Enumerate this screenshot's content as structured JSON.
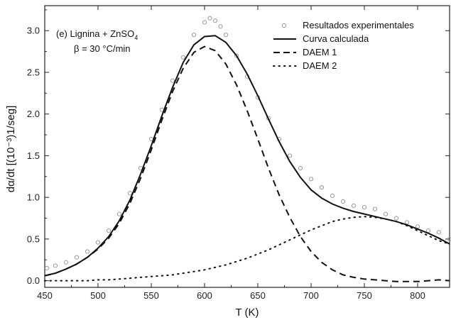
{
  "chart_data": {
    "type": "line",
    "xlabel": "T (K)",
    "ylabel": "dα/dt [(10⁻³)1/seg]",
    "xlim": [
      450,
      830
    ],
    "ylim": [
      -0.08,
      3.3
    ],
    "xticks": [
      450,
      500,
      550,
      600,
      650,
      700,
      750,
      800
    ],
    "yticks": [
      0.0,
      0.5,
      1.0,
      1.5,
      2.0,
      2.5,
      3.0
    ],
    "annotation": {
      "line1_prefix": "(e) Lignina + ZnSO",
      "line1_subscript": "4",
      "line2": "β = 30 °C/min"
    },
    "legend": {
      "placement": "top-right",
      "entries": [
        "Resultados experimentales",
        "Curva calculada",
        "DAEM 1",
        "DAEM 2"
      ]
    },
    "series": [
      {
        "name": "Resultados experimentales",
        "style": "open-circles",
        "color": "#9a9a9a",
        "x": [
          452,
          460,
          470,
          480,
          490,
          500,
          510,
          520,
          530,
          540,
          550,
          560,
          570,
          580,
          590,
          600,
          605,
          610,
          615,
          620,
          630,
          640,
          650,
          660,
          670,
          680,
          690,
          700,
          710,
          720,
          730,
          740,
          750,
          760,
          770,
          780,
          790,
          800,
          810,
          820,
          830
        ],
        "y": [
          0.15,
          0.18,
          0.22,
          0.28,
          0.35,
          0.46,
          0.6,
          0.8,
          1.05,
          1.35,
          1.7,
          2.05,
          2.4,
          2.68,
          2.95,
          3.1,
          3.15,
          3.12,
          3.05,
          2.95,
          2.7,
          2.45,
          2.2,
          1.95,
          1.7,
          1.5,
          1.35,
          1.22,
          1.12,
          1.02,
          0.95,
          0.9,
          0.88,
          0.86,
          0.8,
          0.75,
          0.7,
          0.65,
          0.6,
          0.58,
          0.5
        ]
      },
      {
        "name": "Curva calculada",
        "style": "solid",
        "color": "#111111",
        "x": [
          450,
          460,
          470,
          480,
          490,
          500,
          510,
          520,
          530,
          540,
          550,
          560,
          570,
          580,
          590,
          600,
          610,
          620,
          630,
          640,
          650,
          660,
          670,
          680,
          690,
          700,
          710,
          720,
          730,
          740,
          750,
          760,
          770,
          780,
          790,
          800,
          810,
          820,
          830
        ],
        "y": [
          0.06,
          0.09,
          0.14,
          0.2,
          0.28,
          0.39,
          0.53,
          0.72,
          0.97,
          1.28,
          1.62,
          1.98,
          2.32,
          2.62,
          2.83,
          2.93,
          2.94,
          2.86,
          2.7,
          2.48,
          2.22,
          1.94,
          1.67,
          1.43,
          1.24,
          1.09,
          0.99,
          0.92,
          0.87,
          0.83,
          0.8,
          0.77,
          0.74,
          0.71,
          0.67,
          0.62,
          0.57,
          0.51,
          0.44
        ]
      },
      {
        "name": "DAEM 1",
        "style": "dashed",
        "color": "#111111",
        "x": [
          450,
          460,
          470,
          480,
          490,
          500,
          510,
          520,
          530,
          540,
          550,
          560,
          570,
          580,
          590,
          600,
          610,
          620,
          630,
          640,
          650,
          660,
          670,
          680,
          690,
          700,
          710,
          720,
          730,
          740,
          750,
          760,
          770,
          780,
          790,
          800,
          810,
          820,
          830
        ],
        "y": [
          0.06,
          0.09,
          0.14,
          0.2,
          0.28,
          0.38,
          0.51,
          0.69,
          0.93,
          1.23,
          1.57,
          1.93,
          2.27,
          2.55,
          2.74,
          2.81,
          2.76,
          2.6,
          2.35,
          2.04,
          1.7,
          1.35,
          1.03,
          0.76,
          0.53,
          0.35,
          0.22,
          0.13,
          0.07,
          0.04,
          0.02,
          0.01,
          0.0,
          -0.01,
          -0.01,
          -0.01,
          0.0,
          0.01,
          0.0
        ]
      },
      {
        "name": "DAEM 2",
        "style": "dotted",
        "color": "#111111",
        "x": [
          450,
          460,
          470,
          480,
          490,
          500,
          510,
          520,
          530,
          540,
          550,
          560,
          570,
          580,
          590,
          600,
          610,
          620,
          630,
          640,
          650,
          660,
          670,
          680,
          690,
          700,
          710,
          720,
          730,
          740,
          750,
          760,
          770,
          780,
          790,
          800,
          810,
          820,
          830
        ],
        "y": [
          0.0,
          0.0,
          0.0,
          0.0,
          0.0,
          0.01,
          0.01,
          0.02,
          0.03,
          0.04,
          0.05,
          0.06,
          0.07,
          0.09,
          0.11,
          0.13,
          0.16,
          0.19,
          0.23,
          0.27,
          0.32,
          0.37,
          0.43,
          0.49,
          0.55,
          0.61,
          0.66,
          0.71,
          0.74,
          0.76,
          0.77,
          0.76,
          0.74,
          0.71,
          0.66,
          0.6,
          0.54,
          0.48,
          0.44
        ]
      }
    ]
  }
}
